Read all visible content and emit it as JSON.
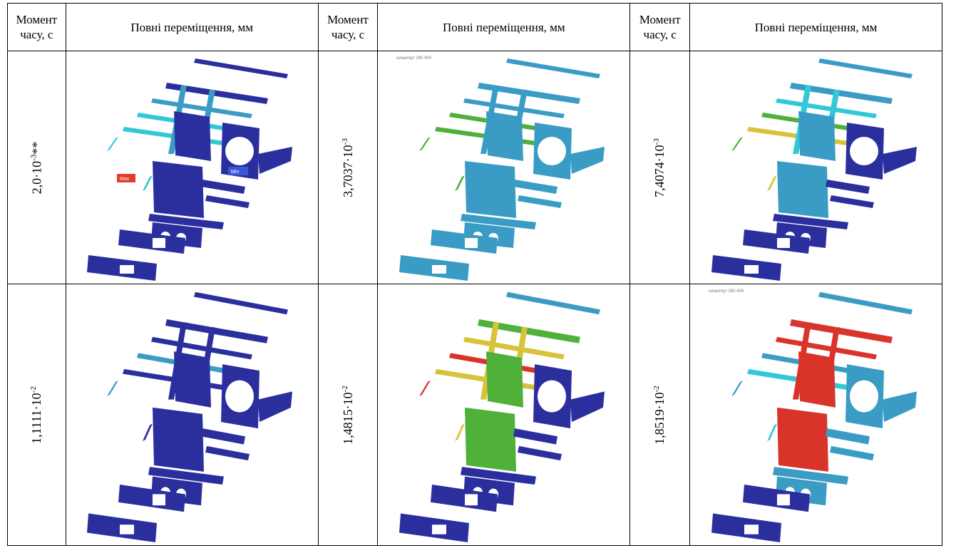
{
  "headers": {
    "time": "Момент часу, с",
    "displacement": "Повні переміщення, мм"
  },
  "rows": [
    [
      {
        "mant": "2,0·10",
        "exp": "-3",
        "suffix": "**",
        "img": "displacement-plot",
        "scheme": "blue"
      },
      {
        "mant": "3,7037·10",
        "exp": "-3",
        "suffix": "",
        "img": "displacement-plot",
        "scheme": "teal"
      },
      {
        "mant": "7,4074·10",
        "exp": "-3",
        "suffix": "",
        "img": "displacement-plot",
        "scheme": "mixed"
      }
    ],
    [
      {
        "mant": "1,1111·10",
        "exp": "-2",
        "suffix": "",
        "img": "displacement-plot",
        "scheme": "blue2"
      },
      {
        "mant": "1,4815·10",
        "exp": "-2",
        "suffix": "",
        "img": "displacement-plot",
        "scheme": "hot"
      },
      {
        "mant": "1,8519·10",
        "exp": "-2",
        "suffix": "",
        "img": "displacement-plot",
        "scheme": "red"
      }
    ]
  ],
  "markers": {
    "max": "Max",
    "min": "Min"
  },
  "caption_small": "шпангоут 290 400",
  "colors": {
    "blue": "#2b2f9e",
    "teal": "#3a9cc4",
    "cyan": "#33c8d8",
    "green": "#4fb03a",
    "yellow": "#d8c23a",
    "red": "#d8342a"
  }
}
